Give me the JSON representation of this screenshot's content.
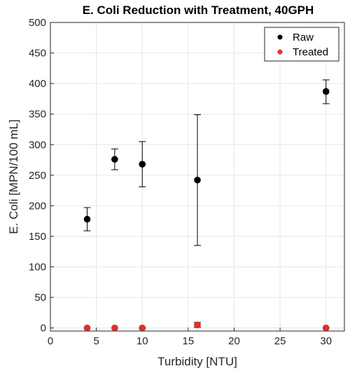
{
  "chart_data": {
    "type": "scatter",
    "title": "E. Coli Reduction with Treatment, 40GPH",
    "xlabel": "Turbidity [NTU]",
    "ylabel": "E. Coli [MPN/100 mL]",
    "xlim": [
      0,
      32
    ],
    "ylim": [
      -5,
      500
    ],
    "xticks": [
      0,
      5,
      10,
      15,
      20,
      25,
      30
    ],
    "yticks": [
      0,
      50,
      100,
      150,
      200,
      250,
      300,
      350,
      400,
      450,
      500
    ],
    "grid": true,
    "legend_position": "top-right",
    "series": [
      {
        "name": "Raw",
        "color": "#000000",
        "points": [
          {
            "x": 4,
            "y": 178,
            "err_low": 159,
            "err_high": 197
          },
          {
            "x": 7,
            "y": 276,
            "err_low": 259,
            "err_high": 293
          },
          {
            "x": 10,
            "y": 268,
            "err_low": 231,
            "err_high": 305
          },
          {
            "x": 16,
            "y": 242,
            "err_low": 135,
            "err_high": 349
          },
          {
            "x": 30,
            "y": 387,
            "err_low": 367,
            "err_high": 406
          }
        ]
      },
      {
        "name": "Treated",
        "color": "#e0302a",
        "points": [
          {
            "x": 4,
            "y": 0
          },
          {
            "x": 7,
            "y": 0
          },
          {
            "x": 10,
            "y": 0
          },
          {
            "x": 16,
            "y": 5,
            "err_low": 1,
            "err_high": 9
          },
          {
            "x": 30,
            "y": 0
          }
        ]
      }
    ]
  }
}
